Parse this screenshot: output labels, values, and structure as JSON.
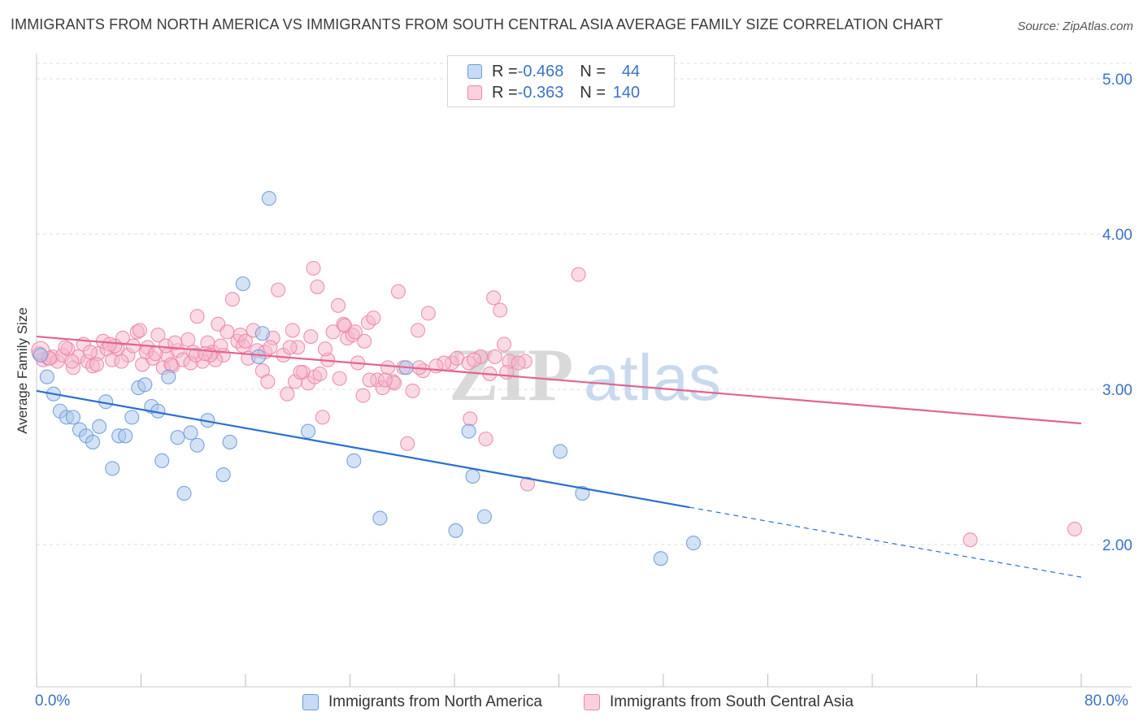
{
  "header": {
    "title": "IMMIGRANTS FROM NORTH AMERICA VS IMMIGRANTS FROM SOUTH CENTRAL ASIA AVERAGE FAMILY SIZE CORRELATION CHART",
    "source": "Source: ZipAtlas.com"
  },
  "legend": {
    "north_america": {
      "r_label": "R = ",
      "r_value": "-0.468",
      "n_label": "N = ",
      "n_value": "44"
    },
    "south_central_asia": {
      "r_label": "R = ",
      "r_value": "-0.363",
      "n_label": "N = ",
      "n_value": "140"
    }
  },
  "bottom_legend": {
    "north_america": "Immigrants from North America",
    "south_central_asia": "Immigrants from South Central Asia"
  },
  "x_axis_labels": {
    "min": "0.0%",
    "max": "80.0%"
  },
  "watermark": {
    "part1": "ZIP",
    "part2": "atlas"
  },
  "colors": {
    "blue_fill": "#aac6ee",
    "blue_stroke": "#6d9ad8",
    "blue_line": "#2a6fd0",
    "pink_fill": "#f6b6cb",
    "pink_stroke": "#ec86a8",
    "pink_line": "#e2648f",
    "tick_label": "#3a73c7",
    "grid": "#dddddd"
  },
  "chart_data": {
    "type": "scatter",
    "title": "IMMIGRANTS FROM NORTH AMERICA VS IMMIGRANTS FROM SOUTH CENTRAL ASIA AVERAGE FAMILY SIZE CORRELATION CHART",
    "xlabel": "",
    "ylabel": "Average Family Size",
    "xlim": [
      0,
      80
    ],
    "ylim": [
      1.0,
      5.2
    ],
    "y_ticks": [
      2.0,
      3.0,
      4.0,
      5.0
    ],
    "y_tick_labels": [
      "2.00",
      "3.00",
      "4.00",
      "5.00"
    ],
    "x_tick_values": [
      0,
      8,
      16,
      24,
      32,
      40,
      48,
      56,
      64,
      72,
      80
    ],
    "grid": true,
    "legend_position": "top-center",
    "series": [
      {
        "name": "Immigrants from North America",
        "color": "blue",
        "r": -0.468,
        "n": 44,
        "trend": {
          "x0": 0,
          "y0": 2.99,
          "x1": 50,
          "y1": 2.24,
          "dash_to_x": 80,
          "dash_to_y": 1.79
        },
        "points": [
          [
            0.3,
            3.22
          ],
          [
            0.8,
            3.08
          ],
          [
            1.3,
            2.97
          ],
          [
            1.8,
            2.86
          ],
          [
            2.3,
            2.82
          ],
          [
            2.8,
            2.82
          ],
          [
            3.3,
            2.74
          ],
          [
            3.8,
            2.7
          ],
          [
            4.3,
            2.66
          ],
          [
            4.8,
            2.76
          ],
          [
            5.3,
            2.92
          ],
          [
            5.8,
            2.49
          ],
          [
            6.3,
            2.7
          ],
          [
            6.8,
            2.7
          ],
          [
            7.3,
            2.82
          ],
          [
            7.8,
            3.01
          ],
          [
            8.3,
            3.03
          ],
          [
            8.8,
            2.89
          ],
          [
            9.3,
            2.86
          ],
          [
            9.6,
            2.54
          ],
          [
            10.1,
            3.08
          ],
          [
            10.8,
            2.69
          ],
          [
            11.3,
            2.33
          ],
          [
            11.8,
            2.72
          ],
          [
            12.3,
            2.64
          ],
          [
            13.1,
            2.8
          ],
          [
            14.3,
            2.45
          ],
          [
            14.8,
            2.66
          ],
          [
            15.8,
            3.68
          ],
          [
            17.8,
            4.23
          ],
          [
            17.0,
            3.21
          ],
          [
            17.3,
            3.36
          ],
          [
            20.8,
            2.73
          ],
          [
            24.3,
            2.54
          ],
          [
            26.3,
            2.17
          ],
          [
            28.3,
            3.14
          ],
          [
            32.1,
            2.09
          ],
          [
            33.1,
            2.73
          ],
          [
            33.4,
            2.44
          ],
          [
            34.3,
            2.18
          ],
          [
            40.1,
            2.6
          ],
          [
            41.8,
            2.33
          ],
          [
            47.8,
            1.91
          ],
          [
            50.3,
            2.01
          ]
        ]
      },
      {
        "name": "Immigrants from South Central Asia",
        "color": "pink",
        "r": -0.363,
        "n": 140,
        "trend": {
          "x0": 0,
          "y0": 3.34,
          "x1": 80,
          "y1": 2.78
        },
        "points": [
          [
            0.2,
            3.23
          ],
          [
            0.5,
            3.19
          ],
          [
            0.9,
            3.2
          ],
          [
            1.2,
            3.21
          ],
          [
            1.6,
            3.18
          ],
          [
            2.0,
            3.22
          ],
          [
            2.4,
            3.26
          ],
          [
            2.8,
            3.14
          ],
          [
            3.2,
            3.21
          ],
          [
            3.6,
            3.29
          ],
          [
            3.9,
            3.18
          ],
          [
            4.3,
            3.15
          ],
          [
            4.7,
            3.23
          ],
          [
            5.1,
            3.31
          ],
          [
            5.4,
            3.26
          ],
          [
            5.8,
            3.19
          ],
          [
            6.2,
            3.26
          ],
          [
            6.6,
            3.33
          ],
          [
            7.0,
            3.22
          ],
          [
            7.4,
            3.28
          ],
          [
            7.7,
            3.37
          ],
          [
            8.1,
            3.16
          ],
          [
            8.5,
            3.27
          ],
          [
            8.9,
            3.2
          ],
          [
            9.3,
            3.35
          ],
          [
            9.7,
            3.14
          ],
          [
            10.0,
            3.22
          ],
          [
            10.4,
            3.15
          ],
          [
            10.8,
            3.25
          ],
          [
            11.2,
            3.19
          ],
          [
            11.6,
            3.32
          ],
          [
            12.0,
            3.24
          ],
          [
            12.3,
            3.47
          ],
          [
            12.7,
            3.18
          ],
          [
            13.1,
            3.3
          ],
          [
            13.5,
            3.24
          ],
          [
            13.9,
            3.42
          ],
          [
            14.3,
            3.22
          ],
          [
            14.6,
            3.37
          ],
          [
            15.0,
            3.58
          ],
          [
            15.4,
            3.31
          ],
          [
            15.8,
            3.28
          ],
          [
            16.2,
            3.2
          ],
          [
            16.6,
            3.38
          ],
          [
            16.9,
            3.25
          ],
          [
            17.3,
            3.12
          ],
          [
            17.7,
            3.05
          ],
          [
            18.1,
            3.33
          ],
          [
            18.5,
            3.64
          ],
          [
            18.9,
            3.22
          ],
          [
            19.2,
            2.97
          ],
          [
            19.6,
            3.38
          ],
          [
            20.0,
            3.27
          ],
          [
            20.4,
            3.11
          ],
          [
            20.8,
            3.04
          ],
          [
            21.2,
            3.78
          ],
          [
            21.5,
            3.66
          ],
          [
            21.9,
            2.82
          ],
          [
            22.3,
            3.19
          ],
          [
            22.7,
            3.37
          ],
          [
            23.1,
            3.54
          ],
          [
            23.5,
            3.42
          ],
          [
            23.8,
            3.33
          ],
          [
            24.2,
            3.35
          ],
          [
            24.6,
            3.17
          ],
          [
            25.0,
            2.96
          ],
          [
            25.4,
            3.43
          ],
          [
            25.8,
            3.46
          ],
          [
            26.1,
            3.06
          ],
          [
            26.5,
            3.01
          ],
          [
            26.9,
            3.14
          ],
          [
            27.3,
            3.05
          ],
          [
            27.7,
            3.63
          ],
          [
            28.1,
            3.14
          ],
          [
            28.4,
            2.65
          ],
          [
            28.8,
            2.99
          ],
          [
            29.2,
            3.38
          ],
          [
            29.6,
            3.12
          ],
          [
            30.0,
            3.49
          ],
          [
            31.8,
            3.17
          ],
          [
            32.2,
            3.2
          ],
          [
            33.2,
            2.81
          ],
          [
            34.7,
            3.1
          ],
          [
            35.1,
            3.21
          ],
          [
            35.5,
            3.51
          ],
          [
            35.8,
            3.29
          ],
          [
            36.2,
            3.18
          ],
          [
            37.4,
            3.18
          ],
          [
            41.5,
            3.74
          ],
          [
            37.6,
            2.39
          ],
          [
            1.0,
            3.2
          ],
          [
            2.2,
            3.27
          ],
          [
            4.1,
            3.24
          ],
          [
            6.0,
            3.28
          ],
          [
            7.9,
            3.38
          ],
          [
            9.9,
            3.28
          ],
          [
            11.8,
            3.17
          ],
          [
            13.7,
            3.19
          ],
          [
            15.6,
            3.35
          ],
          [
            17.5,
            3.24
          ],
          [
            19.4,
            3.27
          ],
          [
            21.3,
            3.08
          ],
          [
            23.2,
            3.07
          ],
          [
            25.1,
            3.31
          ],
          [
            2.7,
            3.18
          ],
          [
            4.6,
            3.16
          ],
          [
            6.5,
            3.18
          ],
          [
            8.4,
            3.24
          ],
          [
            10.3,
            3.16
          ],
          [
            12.2,
            3.22
          ],
          [
            14.1,
            3.28
          ],
          [
            16.0,
            3.31
          ],
          [
            17.9,
            3.27
          ],
          [
            19.8,
            3.05
          ],
          [
            21.7,
            3.1
          ],
          [
            23.6,
            3.41
          ],
          [
            25.5,
            3.06
          ],
          [
            27.4,
            3.04
          ],
          [
            29.3,
            3.14
          ],
          [
            31.2,
            3.17
          ],
          [
            33.1,
            3.17
          ],
          [
            35.0,
            3.59
          ],
          [
            36.9,
            3.17
          ],
          [
            20.2,
            3.11
          ],
          [
            21.0,
            3.34
          ],
          [
            22.1,
            3.26
          ],
          [
            24.4,
            3.37
          ],
          [
            26.7,
            3.06
          ],
          [
            30.6,
            3.15
          ],
          [
            34.4,
            2.68
          ],
          [
            36.0,
            3.11
          ],
          [
            34.0,
            3.21
          ],
          [
            33.5,
            3.19
          ],
          [
            13.3,
            3.22
          ],
          [
            12.9,
            3.23
          ],
          [
            10.6,
            3.3
          ],
          [
            9.1,
            3.23
          ],
          [
            5.6,
            3.29
          ],
          [
            71.5,
            2.03
          ],
          [
            79.5,
            2.1
          ]
        ]
      }
    ]
  }
}
